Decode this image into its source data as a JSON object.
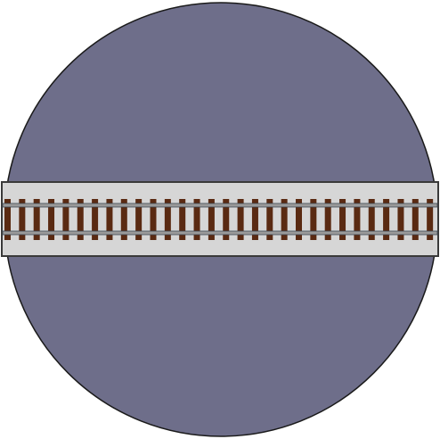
{
  "turntable": {
    "pit_color": "#6e6e8a",
    "pit_outline_color": "#1a1a1a"
  },
  "bridge": {
    "deck_color": "#d6d6d6",
    "deck_outline_color": "#3a3a3a"
  },
  "track": {
    "tie_color": "#5a2a12",
    "rail_color": "#9a9a9a",
    "rail_outline_color": "#3f4a55"
  }
}
